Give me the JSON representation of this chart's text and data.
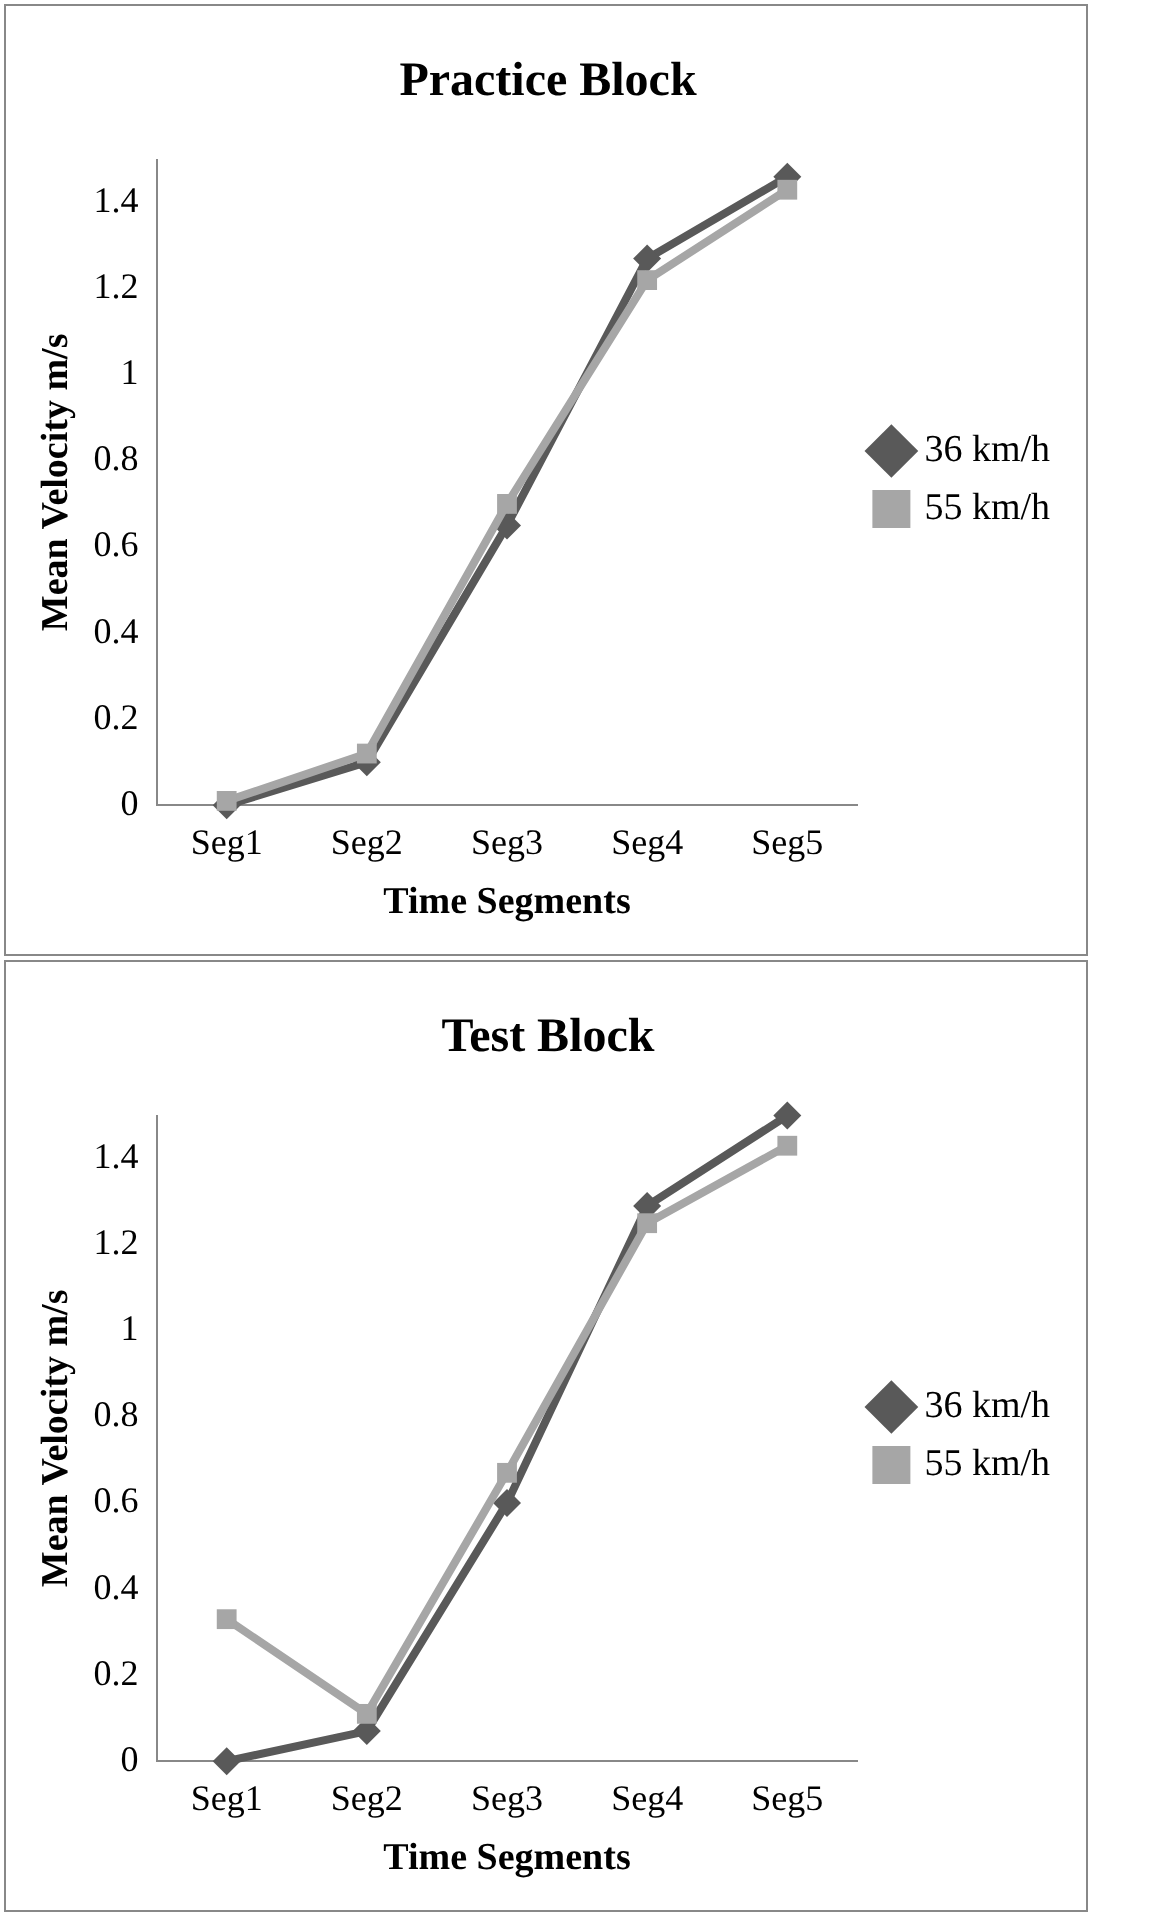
{
  "chart_data": [
    {
      "type": "line",
      "title": "Practice Block",
      "xlabel": "Time Segments",
      "ylabel": "Mean Velocity m/s",
      "categories": [
        "Seg1",
        "Seg2",
        "Seg3",
        "Seg4",
        "Seg5"
      ],
      "ylim": [
        0,
        1.5
      ],
      "yticks": [
        0,
        0.2,
        0.4,
        0.6,
        0.8,
        1,
        1.2,
        1.4
      ],
      "grid": false,
      "legend": "right",
      "line_style": "solid",
      "series": [
        {
          "name": "36 km/h",
          "color": "#595959",
          "marker": "diamond",
          "values": [
            0,
            0.1,
            0.65,
            1.27,
            1.46
          ]
        },
        {
          "name": "55 km/h",
          "color": "#a6a6a6",
          "marker": "square",
          "values": [
            0.01,
            0.12,
            0.7,
            1.22,
            1.43
          ]
        }
      ]
    },
    {
      "type": "line",
      "title": "Test Block",
      "xlabel": "Time Segments",
      "ylabel": "Mean Velocity m/s",
      "categories": [
        "Seg1",
        "Seg2",
        "Seg3",
        "Seg4",
        "Seg5"
      ],
      "ylim": [
        0,
        1.5
      ],
      "yticks": [
        0,
        0.2,
        0.4,
        0.6,
        0.8,
        1,
        1.2,
        1.4
      ],
      "grid": false,
      "legend": "right",
      "line_style": "solid",
      "series": [
        {
          "name": "36 km/h",
          "color": "#595959",
          "marker": "diamond",
          "values": [
            0,
            0.07,
            0.6,
            1.29,
            1.5
          ]
        },
        {
          "name": "55 km/h",
          "color": "#a6a6a6",
          "marker": "square",
          "values": [
            0.33,
            0.11,
            0.67,
            1.25,
            1.43
          ]
        }
      ]
    }
  ]
}
